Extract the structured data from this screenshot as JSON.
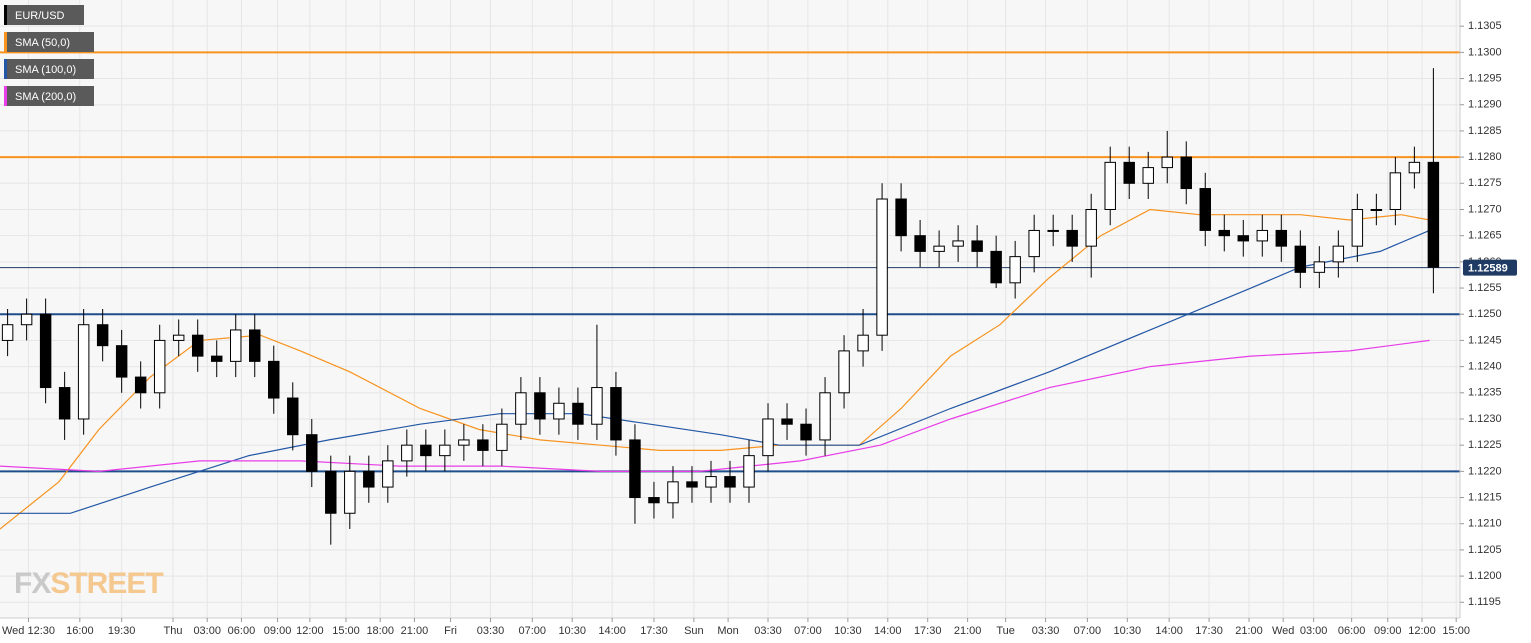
{
  "chart_data": {
    "type": "candlestick",
    "candles": {
      "name": "EUR/USD",
      "color": "#000000",
      "open": [
        1.1245,
        1.1248,
        1.125,
        1.1236,
        1.123,
        1.1248,
        1.1244,
        1.1238,
        1.1235,
        1.1245,
        1.1246,
        1.1242,
        1.1241,
        1.1247,
        1.1241,
        1.1234,
        1.1227,
        1.122,
        1.1212,
        1.122,
        1.1217,
        1.1222,
        1.1225,
        1.1223,
        1.1225,
        1.1226,
        1.1224,
        1.1229,
        1.1235,
        1.123,
        1.1233,
        1.1229,
        1.1236,
        1.1226,
        1.1215,
        1.1214,
        1.1218,
        1.1217,
        1.1219,
        1.1217,
        1.1223,
        1.123,
        1.1229,
        1.1226,
        1.1235,
        1.1243,
        1.1246,
        1.1272,
        1.1265,
        1.1262,
        1.1263,
        1.1264,
        1.1262,
        1.1256,
        1.1261,
        1.1266,
        1.1266,
        1.1263,
        1.127,
        1.1279,
        1.1275,
        1.1278,
        1.128,
        1.1274,
        1.1266,
        1.1265,
        1.1264,
        1.1266,
        1.1263,
        1.1258,
        1.126,
        1.1263,
        1.127,
        1.127,
        1.1277,
        1.1279
      ],
      "high": [
        1.1251,
        1.1253,
        1.1253,
        1.1239,
        1.1251,
        1.1251,
        1.1247,
        1.1241,
        1.1248,
        1.1249,
        1.1249,
        1.1245,
        1.125,
        1.125,
        1.1244,
        1.1237,
        1.123,
        1.1223,
        1.1223,
        1.1223,
        1.1225,
        1.1228,
        1.1228,
        1.1228,
        1.1229,
        1.1229,
        1.1232,
        1.1238,
        1.1238,
        1.1236,
        1.1236,
        1.1248,
        1.1239,
        1.1229,
        1.1218,
        1.1221,
        1.1221,
        1.1222,
        1.1222,
        1.1226,
        1.1233,
        1.1233,
        1.1232,
        1.1238,
        1.1246,
        1.1251,
        1.1275,
        1.1275,
        1.1268,
        1.1266,
        1.1267,
        1.1267,
        1.1265,
        1.1264,
        1.1269,
        1.1269,
        1.1269,
        1.1273,
        1.1282,
        1.1282,
        1.1281,
        1.1285,
        1.1283,
        1.1277,
        1.1269,
        1.1268,
        1.1269,
        1.1269,
        1.1266,
        1.1263,
        1.1266,
        1.1273,
        1.1273,
        1.128,
        1.1282,
        1.1297
      ],
      "low": [
        1.1242,
        1.1245,
        1.1233,
        1.1226,
        1.1227,
        1.1241,
        1.1235,
        1.1232,
        1.1232,
        1.1242,
        1.1239,
        1.1238,
        1.1238,
        1.1238,
        1.1231,
        1.1224,
        1.1217,
        1.1206,
        1.1209,
        1.1214,
        1.1214,
        1.1219,
        1.122,
        1.122,
        1.1222,
        1.1221,
        1.1221,
        1.1226,
        1.1227,
        1.1227,
        1.1226,
        1.1226,
        1.1223,
        1.121,
        1.1211,
        1.1211,
        1.1214,
        1.1214,
        1.1214,
        1.1214,
        1.122,
        1.1226,
        1.1223,
        1.1223,
        1.1232,
        1.124,
        1.1243,
        1.1262,
        1.1259,
        1.1259,
        1.126,
        1.1259,
        1.1255,
        1.1253,
        1.1258,
        1.1263,
        1.126,
        1.1257,
        1.1267,
        1.1272,
        1.1272,
        1.1275,
        1.1271,
        1.1263,
        1.1262,
        1.1261,
        1.1261,
        1.126,
        1.1255,
        1.1255,
        1.1257,
        1.126,
        1.1267,
        1.1267,
        1.1274,
        1.1254
      ],
      "close": [
        1.1248,
        1.125,
        1.1236,
        1.123,
        1.1248,
        1.1244,
        1.1238,
        1.1235,
        1.1245,
        1.1246,
        1.1242,
        1.1241,
        1.1247,
        1.1241,
        1.1234,
        1.1227,
        1.122,
        1.1212,
        1.122,
        1.1217,
        1.1222,
        1.1225,
        1.1223,
        1.1225,
        1.1226,
        1.1224,
        1.1229,
        1.1235,
        1.123,
        1.1233,
        1.1229,
        1.1236,
        1.1226,
        1.1215,
        1.1214,
        1.1218,
        1.1217,
        1.1219,
        1.1217,
        1.1223,
        1.123,
        1.1229,
        1.1226,
        1.1235,
        1.1243,
        1.1246,
        1.1272,
        1.1265,
        1.1262,
        1.1263,
        1.1264,
        1.1262,
        1.1256,
        1.1261,
        1.1266,
        1.1266,
        1.1263,
        1.127,
        1.1279,
        1.1275,
        1.1278,
        1.128,
        1.1274,
        1.1266,
        1.1265,
        1.1264,
        1.1266,
        1.1263,
        1.1258,
        1.126,
        1.1263,
        1.127,
        1.127,
        1.1277,
        1.1279,
        1.1259
      ]
    },
    "series": [
      {
        "name": "SMA (50,0)",
        "color": "#f7931e",
        "x": [
          -0.4,
          2.7,
          4.8,
          7.5,
          10.1,
          13.3,
          15.4,
          18,
          21.7,
          24.8,
          28,
          31.2,
          34.3,
          37.5,
          40.6,
          44.8,
          47,
          49.6,
          52.2,
          54.8,
          57.5,
          60.1,
          62.7,
          65.9,
          68,
          70.6,
          73.3,
          74.8
        ],
        "values": [
          1.1209,
          1.1218,
          1.1228,
          1.1238,
          1.1245,
          1.1246,
          1.1243,
          1.1239,
          1.1232,
          1.1228,
          1.1226,
          1.1225,
          1.1224,
          1.1224,
          1.1225,
          1.1225,
          1.1232,
          1.1242,
          1.1248,
          1.1257,
          1.1265,
          1.127,
          1.1269,
          1.1269,
          1.1269,
          1.1268,
          1.1269,
          1.1268
        ]
      },
      {
        "name": "SMA (100,0)",
        "color": "#2357a5",
        "x": [
          -0.4,
          3.3,
          7.5,
          12.7,
          16.9,
          21.7,
          25.9,
          30.1,
          33.8,
          37.5,
          40.6,
          44.8,
          49.6,
          54.8,
          60.1,
          65.4,
          68,
          72.2,
          74.8
        ],
        "values": [
          1.1212,
          1.1212,
          1.1217,
          1.1223,
          1.1226,
          1.1229,
          1.1231,
          1.1231,
          1.1229,
          1.1227,
          1.1225,
          1.1225,
          1.1232,
          1.1239,
          1.1247,
          1.1255,
          1.1259,
          1.1262,
          1.1266
        ]
      },
      {
        "name": "SMA (200,0)",
        "color": "#e83de8",
        "x": [
          -0.4,
          4.8,
          10.1,
          15.4,
          20.6,
          25.9,
          31.2,
          36.4,
          41.7,
          45.9,
          49.6,
          54.8,
          60.1,
          65.4,
          70.6,
          74.8
        ],
        "values": [
          1.1221,
          1.122,
          1.1222,
          1.1222,
          1.1221,
          1.1221,
          1.122,
          1.122,
          1.1222,
          1.1225,
          1.123,
          1.1236,
          1.124,
          1.1242,
          1.1243,
          1.1245
        ]
      }
    ],
    "levels": [
      {
        "value": 1.13,
        "color": "#f7931e"
      },
      {
        "value": 1.128,
        "color": "#f7931e"
      },
      {
        "value": 1.125,
        "color": "#1f4e8c"
      },
      {
        "value": 1.122,
        "color": "#1f4e8c"
      }
    ],
    "last_price": 1.12589,
    "watermark": [
      "FX",
      "STREET"
    ],
    "grid": true,
    "xlim": [
      -0.4,
      76.4
    ],
    "ylim": [
      1.1192,
      1.131
    ],
    "yticks": [
      {
        "value": 1.1195,
        "label": "1.1195"
      },
      {
        "value": 1.12,
        "label": "1.1200"
      },
      {
        "value": 1.1205,
        "label": "1.1205"
      },
      {
        "value": 1.121,
        "label": "1.1210"
      },
      {
        "value": 1.1215,
        "label": "1.1215"
      },
      {
        "value": 1.122,
        "label": "1.1220"
      },
      {
        "value": 1.1225,
        "label": "1.1225"
      },
      {
        "value": 1.123,
        "label": "1.1230"
      },
      {
        "value": 1.1235,
        "label": "1.1235"
      },
      {
        "value": 1.124,
        "label": "1.1240"
      },
      {
        "value": 1.1245,
        "label": "1.1245"
      },
      {
        "value": 1.125,
        "label": "1.1250"
      },
      {
        "value": 1.1255,
        "label": "1.1255"
      },
      {
        "value": 1.126,
        "label": "1.1260"
      },
      {
        "value": 1.1265,
        "label": "1.1265"
      },
      {
        "value": 1.127,
        "label": "1.1270"
      },
      {
        "value": 1.1275,
        "label": "1.1275"
      },
      {
        "value": 1.128,
        "label": "1.1280"
      },
      {
        "value": 1.1285,
        "label": "1.1285"
      },
      {
        "value": 1.129,
        "label": "1.1290"
      },
      {
        "value": 1.1295,
        "label": "1.1295"
      },
      {
        "value": 1.13,
        "label": "1.1300"
      },
      {
        "value": 1.1305,
        "label": "1.1305"
      }
    ],
    "xticks": [
      {
        "value": 1.1,
        "label": "Wed 12:30"
      },
      {
        "value": 3.8,
        "label": "16:00"
      },
      {
        "value": 6,
        "label": "19:30"
      },
      {
        "value": 8.7,
        "label": "Thu"
      },
      {
        "value": 10.5,
        "label": "03:00"
      },
      {
        "value": 12.3,
        "label": "06:00"
      },
      {
        "value": 14.2,
        "label": "09:00"
      },
      {
        "value": 15.9,
        "label": "12:00"
      },
      {
        "value": 17.8,
        "label": "15:00"
      },
      {
        "value": 19.6,
        "label": "18:00"
      },
      {
        "value": 21.4,
        "label": "21:00"
      },
      {
        "value": 23.3,
        "label": "Fri"
      },
      {
        "value": 25.4,
        "label": "03:30"
      },
      {
        "value": 27.6,
        "label": "07:00"
      },
      {
        "value": 29.7,
        "label": "10:30"
      },
      {
        "value": 31.8,
        "label": "14:00"
      },
      {
        "value": 34,
        "label": "17:30"
      },
      {
        "value": 36.1,
        "label": "Sun"
      },
      {
        "value": 37.9,
        "label": "Mon"
      },
      {
        "value": 40,
        "label": "03:30"
      },
      {
        "value": 42.1,
        "label": "07:00"
      },
      {
        "value": 44.2,
        "label": "10:30"
      },
      {
        "value": 46.3,
        "label": "14:00"
      },
      {
        "value": 48.4,
        "label": "17:30"
      },
      {
        "value": 50.5,
        "label": "21:00"
      },
      {
        "value": 52.5,
        "label": "Tue"
      },
      {
        "value": 54.6,
        "label": "03:30"
      },
      {
        "value": 56.8,
        "label": "07:00"
      },
      {
        "value": 58.9,
        "label": "10:30"
      },
      {
        "value": 61.1,
        "label": "14:00"
      },
      {
        "value": 63.2,
        "label": "17:30"
      },
      {
        "value": 65.3,
        "label": "21:00"
      },
      {
        "value": 67.1,
        "label": "Wed"
      },
      {
        "value": 68.7,
        "label": "03:00"
      },
      {
        "value": 70.7,
        "label": "06:00"
      },
      {
        "value": 72.6,
        "label": "09:00"
      },
      {
        "value": 74.4,
        "label": "12:00"
      },
      {
        "value": 76.2,
        "label": "15:00"
      }
    ]
  }
}
